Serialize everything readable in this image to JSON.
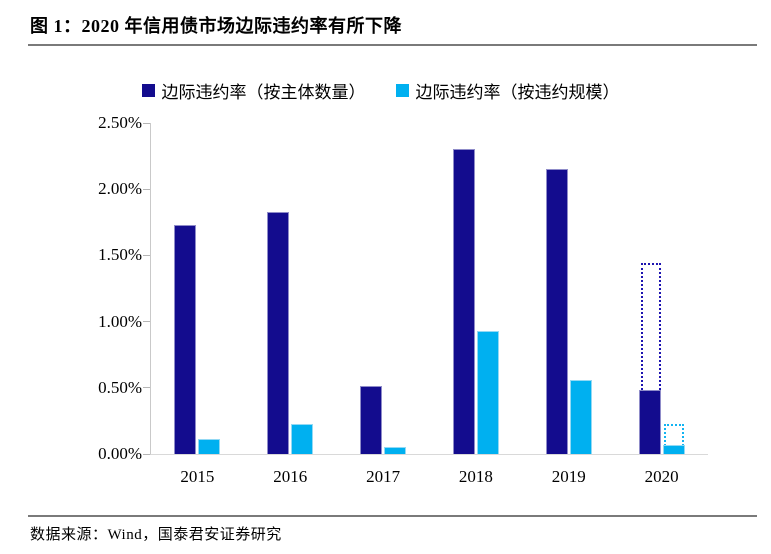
{
  "header": {
    "title": "图 1：2020 年信用债市场边际违约率有所下降"
  },
  "footer": {
    "source": "数据来源：Wind，国泰君安证券研究"
  },
  "chart_data": {
    "type": "bar",
    "unit": "percent",
    "categories": [
      "2015",
      "2016",
      "2017",
      "2018",
      "2019",
      "2020"
    ],
    "series": [
      {
        "name": "边际违约率（按主体数量）",
        "color": "#130c8e",
        "values": [
          1.73,
          1.83,
          0.51,
          2.3,
          2.15,
          0.48
        ]
      },
      {
        "name": "边际违约率（按违约规模）",
        "color": "#00b0f0",
        "values": [
          0.11,
          0.23,
          0.05,
          0.93,
          0.56,
          0.07
        ]
      }
    ],
    "projection_overlay": {
      "category": "2020",
      "style": "dotted-outline",
      "values_by_series": [
        1.44,
        0.23
      ],
      "note": "dotted outline bars drawn over the 2020 solid bars"
    },
    "ylim": [
      0,
      2.5
    ],
    "ytick_labels": [
      "2.50%",
      "2.00%",
      "1.50%",
      "1.00%",
      "0.50%",
      "0.00%"
    ],
    "grid": false,
    "legend_position": "top-center",
    "title": "图 1：2020 年信用债市场边际违约率有所下降",
    "xlabel": "",
    "ylabel": ""
  }
}
